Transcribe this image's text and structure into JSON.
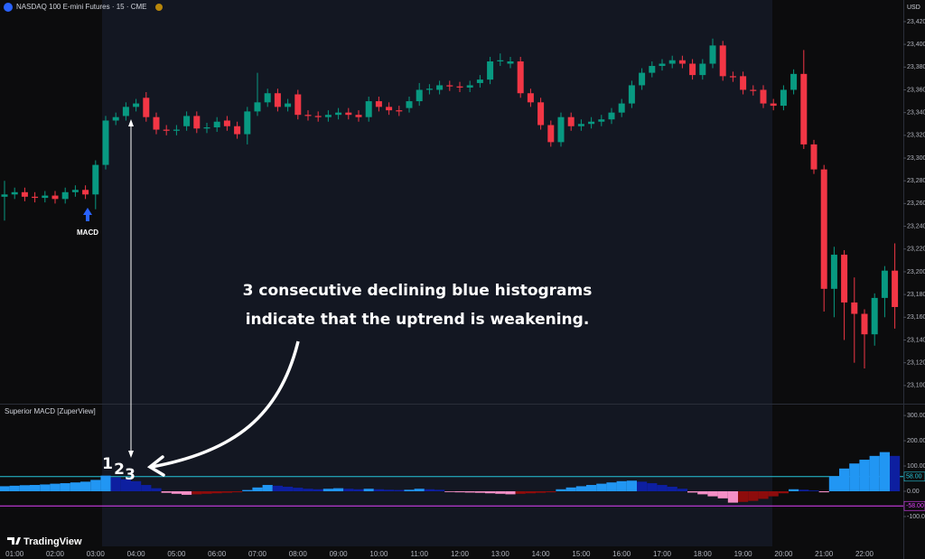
{
  "header": {
    "symbol": "NASDAQ 100 E-mini Futures · 15 · CME",
    "currency": "USD",
    "indicator": "Superior MACD [ZuperView]",
    "brand": "TradingView"
  },
  "annotations": {
    "line1": "3 consecutive declining blue histograms",
    "line2": "indicate that the uptrend is weakening.",
    "n1": "1",
    "n2": "2",
    "n3": "3",
    "signal": "MACD"
  },
  "chart_data": [
    {
      "type": "candlestick",
      "categories": [
        null,
        "01:00",
        null,
        null,
        null,
        "02:00",
        null,
        null,
        null,
        "03:00",
        null,
        null,
        null,
        "04:00",
        null,
        null,
        null,
        "05:00",
        null,
        null,
        null,
        "06:00",
        null,
        null,
        null,
        "07:00",
        null,
        null,
        null,
        "08:00",
        null,
        null,
        null,
        "09:00",
        null,
        null,
        null,
        "10:00",
        null,
        null,
        null,
        "11:00",
        null,
        null,
        null,
        "12:00",
        null,
        null,
        null,
        "13:00",
        null,
        null,
        null,
        "14:00",
        null,
        null,
        null,
        "15:00",
        null,
        null,
        null,
        "16:00",
        null,
        null,
        null,
        "17:00",
        null,
        null,
        null,
        "18:00",
        null,
        null,
        null,
        "19:00",
        null,
        null,
        null,
        "20:00",
        null,
        null,
        null,
        "21:00",
        null,
        null,
        null,
        "22:00",
        null,
        null,
        null
      ],
      "open": [
        23266,
        23268,
        23270,
        23266,
        23265,
        23267,
        23264,
        23270,
        23272,
        23268,
        23294,
        23333,
        23337,
        23345,
        23353,
        23336,
        23325,
        23324,
        23328,
        23337,
        23326,
        23327,
        23333,
        23328,
        23321,
        23341,
        23349,
        23357,
        23345,
        23356,
        23338,
        23337,
        23336,
        23338,
        23340,
        23338,
        23336,
        23350,
        23345,
        23342,
        23344,
        23350,
        23360,
        23360,
        23364,
        23363,
        23362,
        23366,
        23369,
        23385,
        23383,
        23385,
        23357,
        23349,
        23329,
        23314,
        23336,
        23328,
        23330,
        23332,
        23334,
        23340,
        23348,
        23364,
        23375,
        23381,
        23383,
        23386,
        23383,
        23373,
        23383,
        23399,
        23372,
        23372,
        23360,
        23360,
        23348,
        23346,
        23360,
        23374,
        23312,
        23290,
        23185,
        23215,
        23173,
        23163,
        23145,
        23177,
        23201
      ],
      "high": [
        23280,
        23274,
        23274,
        23270,
        23271,
        23271,
        23274,
        23276,
        23276,
        23298,
        23337,
        23340,
        23349,
        23352,
        23358,
        23340,
        23329,
        23329,
        23341,
        23341,
        23331,
        23336,
        23337,
        23332,
        23345,
        23375,
        23361,
        23361,
        23352,
        23360,
        23342,
        23341,
        23342,
        23344,
        23344,
        23342,
        23354,
        23354,
        23349,
        23346,
        23354,
        23366,
        23365,
        23368,
        23368,
        23367,
        23368,
        23373,
        23389,
        23392,
        23389,
        23389,
        23361,
        23353,
        23333,
        23340,
        23340,
        23334,
        23336,
        23338,
        23344,
        23352,
        23368,
        23379,
        23385,
        23387,
        23390,
        23390,
        23387,
        23387,
        23405,
        23403,
        23376,
        23376,
        23364,
        23364,
        23352,
        23364,
        23378,
        23395,
        23316,
        23294,
        23222,
        23219,
        23195,
        23167,
        23181,
        23205,
        23225
      ],
      "low": [
        23245,
        23264,
        23262,
        23261,
        23261,
        23260,
        23260,
        23266,
        23264,
        23255,
        23290,
        23329,
        23333,
        23341,
        23332,
        23321,
        23320,
        23320,
        23324,
        23322,
        23322,
        23323,
        23324,
        23317,
        23312,
        23337,
        23345,
        23341,
        23341,
        23334,
        23333,
        23332,
        23332,
        23334,
        23334,
        23332,
        23332,
        23341,
        23338,
        23337,
        23340,
        23346,
        23356,
        23356,
        23359,
        23358,
        23358,
        23362,
        23365,
        23381,
        23379,
        23353,
        23345,
        23325,
        23310,
        23310,
        23324,
        23324,
        23326,
        23328,
        23330,
        23336,
        23344,
        23360,
        23371,
        23377,
        23379,
        23379,
        23369,
        23369,
        23379,
        23368,
        23367,
        23356,
        23355,
        23344,
        23342,
        23342,
        23356,
        23308,
        23286,
        23165,
        23160,
        23140,
        23120,
        23115,
        23135,
        23160,
        23150
      ],
      "close": [
        23268,
        23270,
        23266,
        23265,
        23267,
        23264,
        23270,
        23272,
        23268,
        23294,
        23333,
        23336,
        23345,
        23348,
        23336,
        23325,
        23324,
        23325,
        23337,
        23326,
        23327,
        23332,
        23328,
        23321,
        23341,
        23349,
        23357,
        23345,
        23348,
        23338,
        23337,
        23336,
        23338,
        23340,
        23338,
        23336,
        23350,
        23345,
        23342,
        23341,
        23350,
        23360,
        23361,
        23364,
        23363,
        23362,
        23364,
        23369,
        23385,
        23386,
        23385,
        23357,
        23349,
        23329,
        23314,
        23336,
        23328,
        23330,
        23332,
        23334,
        23340,
        23348,
        23364,
        23375,
        23381,
        23383,
        23386,
        23383,
        23373,
        23383,
        23399,
        23372,
        23371,
        23360,
        23359,
        23348,
        23346,
        23360,
        23374,
        23312,
        23290,
        23185,
        23215,
        23173,
        23163,
        23145,
        23177,
        23201,
        23169
      ],
      "up_color": "#089981",
      "down_color": "#f23645",
      "ylim": [
        23084,
        23439
      ],
      "yticks": [
        {
          "value": 23100,
          "label": "23,100"
        },
        {
          "value": 23120,
          "label": "23,120"
        },
        {
          "value": 23140,
          "label": "23,140"
        },
        {
          "value": 23160,
          "label": "23,160"
        },
        {
          "value": 23180,
          "label": "23,180"
        },
        {
          "value": 23200,
          "label": "23,200"
        },
        {
          "value": 23220,
          "label": "23,220"
        },
        {
          "value": 23240,
          "label": "23,240"
        },
        {
          "value": 23260,
          "label": "23,260"
        },
        {
          "value": 23280,
          "label": "23,280"
        },
        {
          "value": 23300,
          "label": "23,300"
        },
        {
          "value": 23320,
          "label": "23,320"
        },
        {
          "value": 23340,
          "label": "23,340"
        },
        {
          "value": 23360,
          "label": "23,360"
        },
        {
          "value": 23380,
          "label": "23,380"
        },
        {
          "value": 23400,
          "label": "23,400"
        },
        {
          "value": 23420,
          "label": "23,420"
        }
      ],
      "grid": false
    },
    {
      "type": "bar",
      "values": [
        20,
        22,
        24,
        25,
        27,
        30,
        32,
        35,
        38,
        45,
        62,
        55,
        48,
        40,
        25,
        12,
        -6,
        -10,
        -14,
        -12,
        -10,
        -8,
        -6,
        -4,
        5,
        15,
        25,
        22,
        18,
        14,
        10,
        8,
        10,
        12,
        10,
        8,
        10,
        8,
        6,
        5,
        6,
        10,
        8,
        6,
        -3,
        -4,
        -5,
        -6,
        -8,
        -10,
        -12,
        -10,
        -8,
        -6,
        -4,
        8,
        15,
        20,
        25,
        30,
        35,
        40,
        42,
        38,
        32,
        25,
        18,
        10,
        -5,
        -12,
        -20,
        -28,
        -45,
        -42,
        -38,
        -30,
        -20,
        -8,
        8,
        6,
        3,
        -4,
        60,
        90,
        110,
        125,
        140,
        155,
        140
      ],
      "histogram_colors": [
        "#2196f3",
        "#0d1fa0",
        "#f48fc6",
        "#8e0c0c"
      ],
      "ylim": [
        -218,
        336
      ],
      "yticks": [
        {
          "value": 300,
          "label": "300.00"
        },
        {
          "value": 200,
          "label": "200.00"
        },
        {
          "value": 100,
          "label": "100.00"
        },
        {
          "value": 0,
          "label": "0.00"
        },
        {
          "value": -100,
          "label": "-100.0"
        }
      ],
      "levels": [
        {
          "value": 58,
          "label": "58.00",
          "color": "#26c6da"
        },
        {
          "value": -58,
          "label": "-58.00",
          "color": "#e040fb"
        }
      ],
      "grid": false
    }
  ]
}
